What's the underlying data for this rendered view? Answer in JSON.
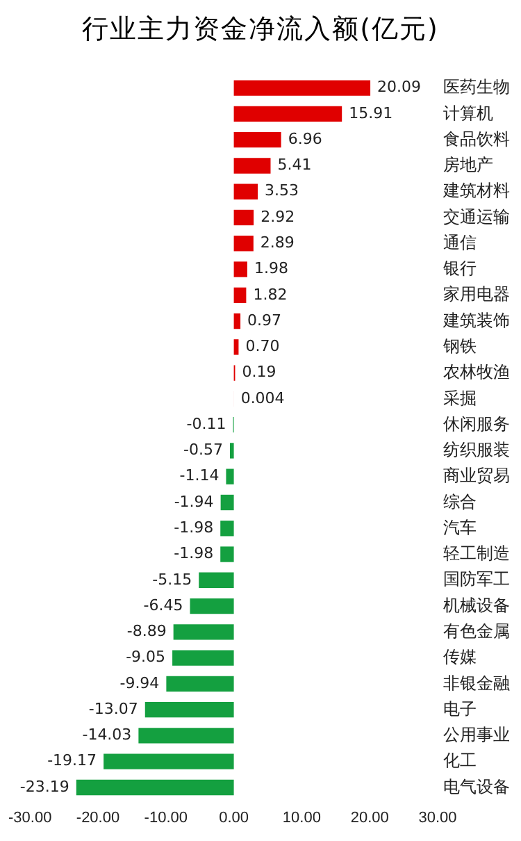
{
  "chart_data": {
    "type": "bar",
    "orientation": "horizontal",
    "title": "行业主力资金净流入额(亿元)",
    "categories": [
      "医药生物",
      "计算机",
      "食品饮料",
      "房地产",
      "建筑材料",
      "交通运输",
      "通信",
      "银行",
      "家用电器",
      "建筑装饰",
      "钢铁",
      "农林牧渔",
      "采掘",
      "休闲服务",
      "纺织服装",
      "商业贸易",
      "综合",
      "汽车",
      "轻工制造",
      "国防军工",
      "机械设备",
      "有色金属",
      "传媒",
      "非银金融",
      "电子",
      "公用事业",
      "化工",
      "电气设备"
    ],
    "values": [
      20.09,
      15.91,
      6.96,
      5.41,
      3.53,
      2.92,
      2.89,
      1.98,
      1.82,
      0.97,
      0.7,
      0.19,
      0.004,
      -0.11,
      -0.57,
      -1.14,
      -1.94,
      -1.98,
      -1.98,
      -5.15,
      -6.45,
      -8.89,
      -9.05,
      -9.94,
      -13.07,
      -14.03,
      -19.17,
      -23.19
    ],
    "colors": [
      "#e00000",
      "#e00000",
      "#e00000",
      "#e00000",
      "#e00000",
      "#e00000",
      "#e00000",
      "#e00000",
      "#e00000",
      "#e00000",
      "#e00000",
      "#e00000",
      "#e00000",
      "#14a040",
      "#14a040",
      "#14a040",
      "#14a040",
      "#14a040",
      "#14a040",
      "#14a040",
      "#14a040",
      "#14a040",
      "#14a040",
      "#14a040",
      "#14a040",
      "#14a040",
      "#14a040",
      "#14a040"
    ],
    "value_labels": [
      "20.09",
      "15.91",
      "6.96",
      "5.41",
      "3.53",
      "2.92",
      "2.89",
      "1.98",
      "1.82",
      "0.97",
      "0.70",
      "0.19",
      "0.004",
      "-0.11",
      "-0.57",
      "-1.14",
      "-1.94",
      "-1.98",
      "-1.98",
      "-5.15",
      "-6.45",
      "-8.89",
      "-9.05",
      "-9.94",
      "-13.07",
      "-14.03",
      "-19.17",
      "-23.19"
    ],
    "xlim": [
      -30,
      30
    ],
    "xticks": [
      {
        "value": -30,
        "label": "-30.00"
      },
      {
        "value": -20,
        "label": "-20.00"
      },
      {
        "value": -10,
        "label": "-10.00"
      },
      {
        "value": 0,
        "label": "0.00"
      },
      {
        "value": 10,
        "label": "10.00"
      },
      {
        "value": 20,
        "label": "20.00"
      },
      {
        "value": 30,
        "label": "30.00"
      }
    ],
    "grid": false,
    "legend": false
  }
}
